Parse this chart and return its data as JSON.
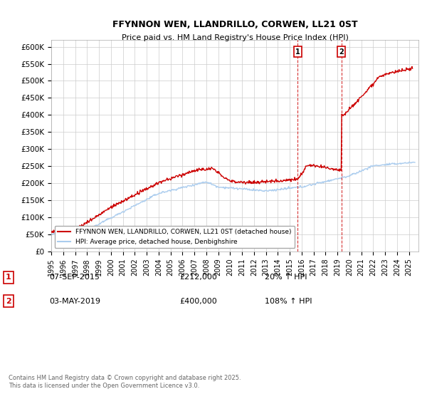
{
  "title": "FFYNNON WEN, LLANDRILLO, CORWEN, LL21 0ST",
  "subtitle": "Price paid vs. HM Land Registry's House Price Index (HPI)",
  "ylim": [
    0,
    620000
  ],
  "yticks": [
    0,
    50000,
    100000,
    150000,
    200000,
    250000,
    300000,
    350000,
    400000,
    450000,
    500000,
    550000,
    600000
  ],
  "ytick_labels": [
    "£0",
    "£50K",
    "£100K",
    "£150K",
    "£200K",
    "£250K",
    "£300K",
    "£350K",
    "£400K",
    "£450K",
    "£500K",
    "£550K",
    "£600K"
  ],
  "xlim_start": 1995.0,
  "xlim_end": 2025.8,
  "background_color": "#ffffff",
  "plot_bg_color": "#ffffff",
  "grid_color": "#cccccc",
  "red_line_color": "#cc0000",
  "blue_line_color": "#aaccee",
  "marker1_x": 2015.68,
  "marker1_y": 212000,
  "marker2_x": 2019.33,
  "marker2_y": 400000,
  "legend_entry1": "FFYNNON WEN, LLANDRILLO, CORWEN, LL21 0ST (detached house)",
  "legend_entry2": "HPI: Average price, detached house, Denbighshire",
  "annotation1_date": "07-SEP-2015",
  "annotation1_price": "£212,000",
  "annotation1_hpi": "20% ↑ HPI",
  "annotation2_date": "03-MAY-2019",
  "annotation2_price": "£400,000",
  "annotation2_hpi": "108% ↑ HPI",
  "footer": "Contains HM Land Registry data © Crown copyright and database right 2025.\nThis data is licensed under the Open Government Licence v3.0.",
  "vline1_x": 2015.68,
  "vline2_x": 2019.33
}
